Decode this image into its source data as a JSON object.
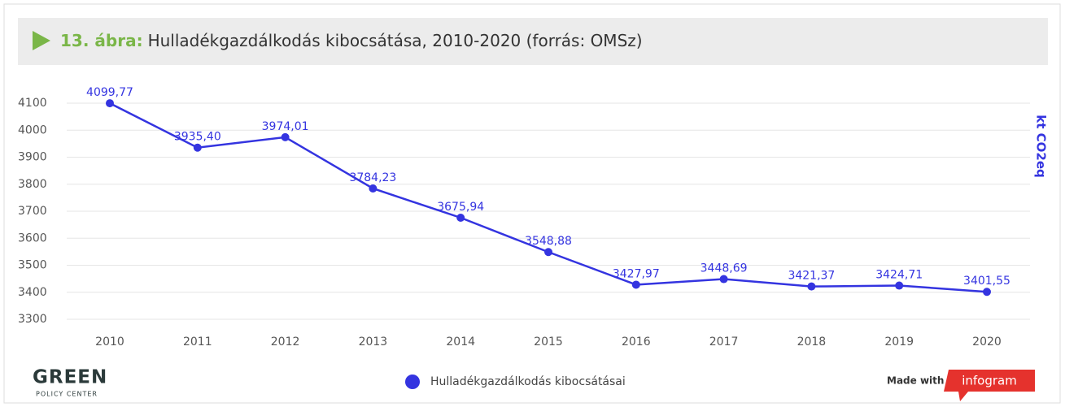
{
  "chart_data": {
    "type": "line",
    "figure_label": "13. ábra:",
    "title": "Hulladékgazdálkodás kibocsátása, 2010-2020 (forrás: OMSz)",
    "y_label": "kt CO2eq",
    "categories": [
      "2010",
      "2011",
      "2012",
      "2013",
      "2014",
      "2015",
      "2016",
      "2017",
      "2018",
      "2019",
      "2020"
    ],
    "series": [
      {
        "name": "Hulladékgazdálkodás kibocsátásai",
        "color": "#3434e0",
        "values": [
          4099.77,
          3935.4,
          3974.01,
          3784.23,
          3675.94,
          3548.88,
          3427.97,
          3448.69,
          3421.37,
          3424.71,
          3401.55
        ],
        "value_labels": [
          "4099,77",
          "3935,40",
          "3974,01",
          "3784,23",
          "3675,94",
          "3548,88",
          "3427,97",
          "3448,69",
          "3421,37",
          "3424,71",
          "3401,55"
        ]
      }
    ],
    "ylim": [
      3300,
      4100
    ],
    "yticks": [
      3300,
      3400,
      3500,
      3600,
      3700,
      3800,
      3900,
      4000,
      4100
    ],
    "grid": true
  },
  "footer": {
    "logo": "GREEN",
    "logo_sub": "POLICY CENTER",
    "made_with": "Made with",
    "brand": "infogram"
  }
}
